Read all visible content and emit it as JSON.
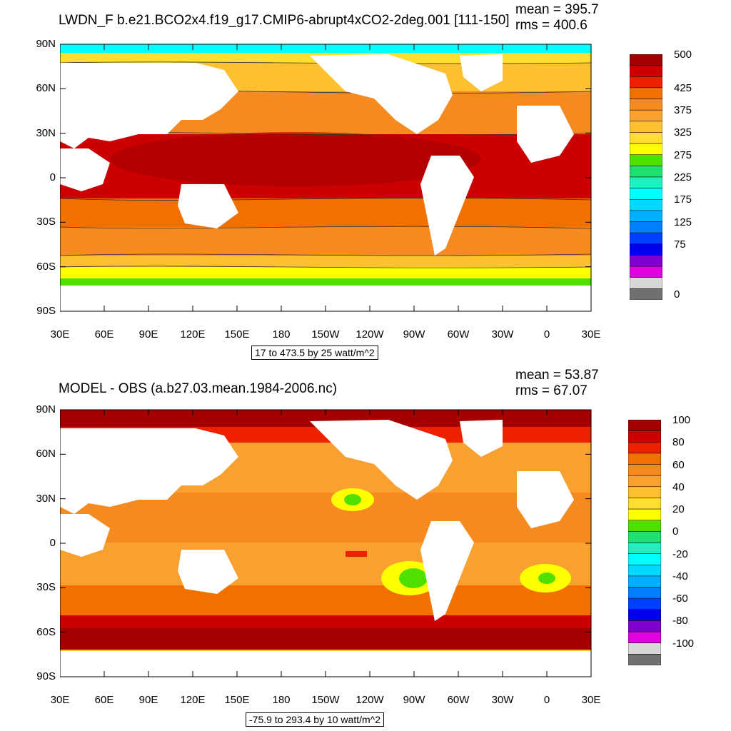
{
  "top": {
    "title": "LWDN_F b.e21.BCO2x4.f19_g17.CMIP6-abrupt4xCO2-2deg.001 [111-150]",
    "mean_text": "mean = 395.7",
    "rms_text": "rms = 400.6",
    "range_text": "17 to 473.5 by 25 watt/m^2",
    "colorbar": {
      "colors": [
        "#a50000",
        "#cc0000",
        "#ee2000",
        "#f07000",
        "#f48a20",
        "#f8a030",
        "#fcc030",
        "#ffde30",
        "#ffff00",
        "#50e000",
        "#20e070",
        "#20f0c0",
        "#00ffff",
        "#00d8ff",
        "#00b0ff",
        "#0080ff",
        "#0040ff",
        "#0000ee",
        "#8000d0",
        "#e000e0",
        "#d8d8d8",
        "#707070"
      ],
      "labels": [
        "500",
        "425",
        "375",
        "325",
        "275",
        "225",
        "175",
        "125",
        "75",
        "0"
      ],
      "label_bins": [
        0,
        3,
        5,
        7,
        9,
        11,
        13,
        15,
        17,
        21.5
      ]
    }
  },
  "bottom": {
    "title": "MODEL - OBS (a.b27.03.mean.1984-2006.nc)",
    "mean_text": "mean = 53.87",
    "rms_text": "rms = 67.07",
    "range_text": "-75.9 to 293.4 by 10 watt/m^2",
    "colorbar": {
      "colors": [
        "#a50000",
        "#cc0000",
        "#ee2000",
        "#f07000",
        "#f48a20",
        "#f8a030",
        "#fcc030",
        "#ffde30",
        "#ffff00",
        "#50e000",
        "#20e070",
        "#20f0c0",
        "#00ffff",
        "#00d8ff",
        "#00b0ff",
        "#0080ff",
        "#0040ff",
        "#0000ee",
        "#8000d0",
        "#e000e0",
        "#d8d8d8",
        "#707070"
      ],
      "labels": [
        "100",
        "80",
        "60",
        "40",
        "20",
        "0",
        "-20",
        "-40",
        "-60",
        "-80",
        "-100"
      ],
      "label_bins": [
        0,
        2,
        4,
        6,
        8,
        10,
        12,
        14,
        16,
        18,
        20
      ]
    }
  },
  "axes": {
    "lat_ticks": [
      "90N",
      "60N",
      "30N",
      "0",
      "30S",
      "60S",
      "90S"
    ],
    "lon_ticks": [
      "30E",
      "60E",
      "90E",
      "120E",
      "150E",
      "180",
      "150W",
      "120W",
      "90W",
      "60W",
      "30W",
      "0",
      "30E"
    ]
  },
  "colors": {
    "land": "#ffffff",
    "contour": "#333333"
  }
}
